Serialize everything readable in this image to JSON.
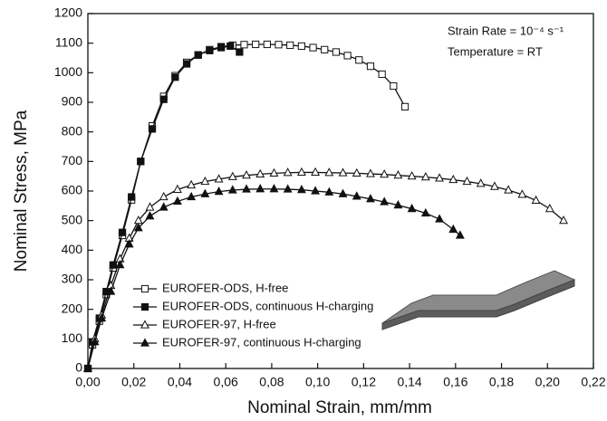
{
  "chart_data": {
    "type": "line",
    "x_label": "Nominal Strain, mm/mm",
    "y_label": "Nominal Stress, MPa",
    "annotations": [
      "Strain Rate = 10⁻⁴ s⁻¹",
      "Temperature = RT"
    ],
    "xlim": [
      0,
      0.22
    ],
    "ylim": [
      0,
      1200
    ],
    "xticks": [
      {
        "value": 0,
        "label": "0,00"
      },
      {
        "value": 0.02,
        "label": "0,02"
      },
      {
        "value": 0.04,
        "label": "0,04"
      },
      {
        "value": 0.06,
        "label": "0,06"
      },
      {
        "value": 0.08,
        "label": "0,08"
      },
      {
        "value": 0.1,
        "label": "0,10"
      },
      {
        "value": 0.12,
        "label": "0,12"
      },
      {
        "value": 0.14,
        "label": "0,14"
      },
      {
        "value": 0.16,
        "label": "0,16"
      },
      {
        "value": 0.18,
        "label": "0,18"
      },
      {
        "value": 0.2,
        "label": "0,20"
      },
      {
        "value": 0.22,
        "label": "0,22"
      }
    ],
    "yticks": [
      0,
      100,
      200,
      300,
      400,
      500,
      600,
      700,
      800,
      900,
      1000,
      1100,
      1200
    ],
    "legend_position": "lower left",
    "series": [
      {
        "name": "EUROFER-ODS, H-free",
        "color": "#111111",
        "marker": "square",
        "filled": false,
        "x": [
          0,
          0.002,
          0.005,
          0.008,
          0.011,
          0.015,
          0.019,
          0.023,
          0.028,
          0.033,
          0.038,
          0.043,
          0.048,
          0.053,
          0.058,
          0.063,
          0.068,
          0.073,
          0.078,
          0.083,
          0.088,
          0.093,
          0.098,
          0.103,
          0.108,
          0.113,
          0.118,
          0.123,
          0.128,
          0.133,
          0.138
        ],
        "values": [
          0,
          80,
          160,
          250,
          340,
          450,
          570,
          700,
          820,
          920,
          990,
          1035,
          1060,
          1078,
          1088,
          1093,
          1095,
          1096,
          1096,
          1095,
          1093,
          1090,
          1085,
          1078,
          1070,
          1058,
          1043,
          1022,
          995,
          955,
          885
        ]
      },
      {
        "name": "EUROFER-ODS, continuous H-charging",
        "color": "#111111",
        "marker": "square",
        "filled": true,
        "x": [
          0,
          0.002,
          0.005,
          0.008,
          0.011,
          0.015,
          0.019,
          0.023,
          0.028,
          0.033,
          0.038,
          0.043,
          0.048,
          0.053,
          0.058,
          0.062,
          0.066
        ],
        "values": [
          0,
          90,
          170,
          260,
          350,
          460,
          580,
          700,
          810,
          910,
          985,
          1030,
          1060,
          1075,
          1085,
          1090,
          1070
        ]
      },
      {
        "name": "EUROFER-97, H-free",
        "color": "#111111",
        "marker": "triangle",
        "filled": false,
        "x": [
          0,
          0.003,
          0.006,
          0.01,
          0.014,
          0.018,
          0.022,
          0.027,
          0.033,
          0.039,
          0.045,
          0.051,
          0.057,
          0.063,
          0.069,
          0.075,
          0.081,
          0.087,
          0.093,
          0.099,
          0.105,
          0.111,
          0.117,
          0.123,
          0.129,
          0.135,
          0.141,
          0.147,
          0.153,
          0.159,
          0.165,
          0.171,
          0.177,
          0.183,
          0.189,
          0.195,
          0.201,
          0.207
        ],
        "values": [
          0,
          100,
          180,
          280,
          370,
          440,
          500,
          545,
          580,
          605,
          620,
          632,
          640,
          648,
          653,
          657,
          660,
          662,
          663,
          663,
          662,
          661,
          660,
          658,
          656,
          653,
          650,
          647,
          643,
          638,
          632,
          625,
          615,
          603,
          588,
          568,
          540,
          500
        ]
      },
      {
        "name": "EUROFER-97, continuous H-charging",
        "color": "#111111",
        "marker": "triangle",
        "filled": true,
        "x": [
          0,
          0.003,
          0.006,
          0.01,
          0.014,
          0.018,
          0.022,
          0.027,
          0.033,
          0.039,
          0.045,
          0.051,
          0.057,
          0.063,
          0.069,
          0.075,
          0.081,
          0.087,
          0.093,
          0.099,
          0.105,
          0.111,
          0.117,
          0.123,
          0.129,
          0.135,
          0.141,
          0.147,
          0.153,
          0.159,
          0.162
        ],
        "values": [
          0,
          90,
          170,
          260,
          350,
          420,
          475,
          515,
          545,
          565,
          580,
          590,
          598,
          603,
          606,
          607,
          607,
          606,
          604,
          600,
          596,
          590,
          582,
          573,
          563,
          552,
          540,
          525,
          505,
          470,
          450
        ]
      }
    ]
  }
}
